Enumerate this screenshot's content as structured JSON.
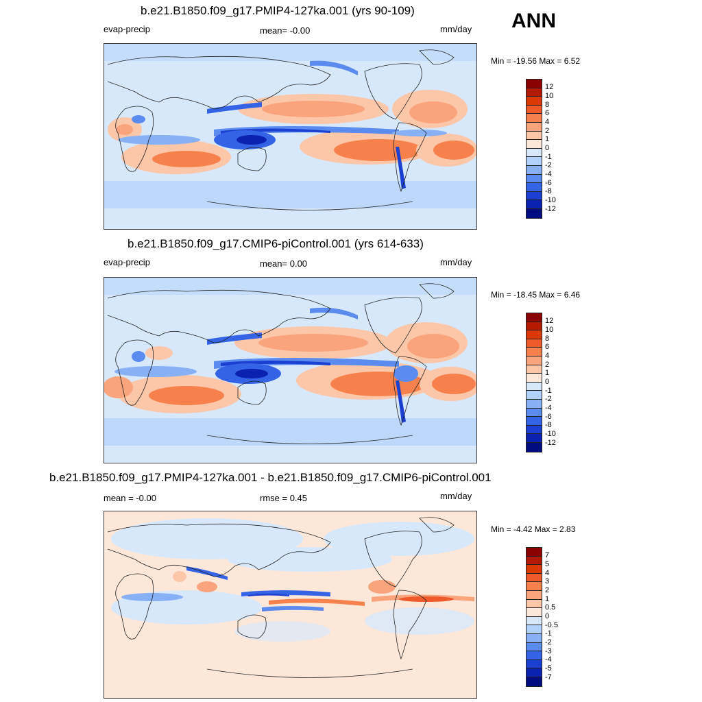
{
  "season": "ANN",
  "panels": [
    {
      "title": "b.e21.B1850.f09_g17.PMIP4-127ka.001 (yrs 90-109)",
      "left_label": "evap-precip",
      "center_label": "mean=  -0.00",
      "units": "mm/day",
      "minmax": "Min = -19.56 Max =   6.52",
      "colorbar": {
        "labels": [
          "12",
          "10",
          "8",
          "6",
          "4",
          "2",
          "1",
          "0",
          "-1",
          "-2",
          "-4",
          "-6",
          "-8",
          "-10",
          "-12"
        ],
        "colors": [
          "#8b0000",
          "#b41a00",
          "#d93a06",
          "#ee5a2a",
          "#f7814d",
          "#f9a47c",
          "#fcc6a8",
          "#fde7d9",
          "#d7e8fb",
          "#b2d1fa",
          "#87b0f5",
          "#5b8bef",
          "#3463e6",
          "#1a3fd1",
          "#0b22b0",
          "#000c80"
        ]
      }
    },
    {
      "title": "b.e21.B1850.f09_g17.CMIP6-piControl.001 (yrs 614-633)",
      "left_label": "evap-precip",
      "center_label": "mean=   0.00",
      "units": "mm/day",
      "minmax": "Min = -18.45 Max =   6.46",
      "colorbar": {
        "labels": [
          "12",
          "10",
          "8",
          "6",
          "4",
          "2",
          "1",
          "0",
          "-1",
          "-2",
          "-4",
          "-6",
          "-8",
          "-10",
          "-12"
        ],
        "colors": [
          "#8b0000",
          "#b41a00",
          "#d93a06",
          "#ee5a2a",
          "#f7814d",
          "#f9a47c",
          "#fcc6a8",
          "#fde7d9",
          "#d7e8fb",
          "#b2d1fa",
          "#87b0f5",
          "#5b8bef",
          "#3463e6",
          "#1a3fd1",
          "#0b22b0",
          "#000c80"
        ]
      }
    },
    {
      "title": "b.e21.B1850.f09_g17.PMIP4-127ka.001 - b.e21.B1850.f09_g17.CMIP6-piControl.001",
      "left_label": "mean =  -0.00",
      "center_label": "rmse =   0.45",
      "units": "mm/day",
      "minmax": "Min =  -4.42 Max =   2.83",
      "colorbar": {
        "labels": [
          "7",
          "5",
          "4",
          "3",
          "2",
          "1",
          "0.5",
          "0",
          "-0.5",
          "-1",
          "-2",
          "-3",
          "-4",
          "-5",
          "-7"
        ],
        "colors": [
          "#8b0000",
          "#b41a00",
          "#d93a06",
          "#ee5a2a",
          "#f7814d",
          "#f9a47c",
          "#fcc6a8",
          "#fde7d9",
          "#d7e8fb",
          "#b2d1fa",
          "#87b0f5",
          "#5b8bef",
          "#3463e6",
          "#1a3fd1",
          "#0b22b0",
          "#000c80"
        ]
      }
    }
  ]
}
